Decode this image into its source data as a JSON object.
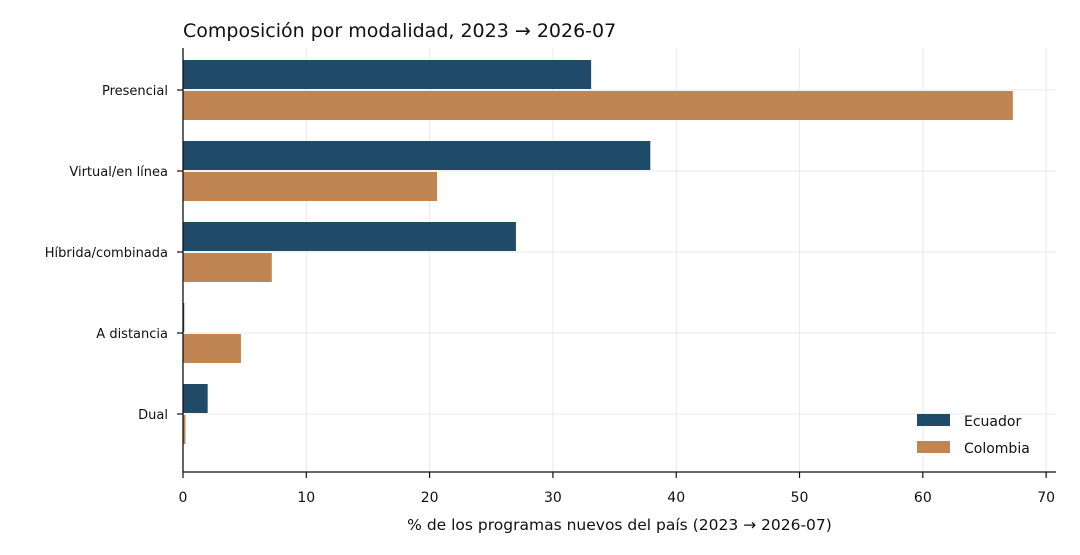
{
  "chart_data": {
    "type": "bar",
    "orientation": "horizontal",
    "title": "Composición por modalidad, 2023 → 2026-07",
    "xlabel": "% de los programas nuevos del país (2023 → 2026-07)",
    "ylabel": "",
    "categories": [
      "Presencial",
      "Virtual/en línea",
      "Híbrida/combinada",
      "A distancia",
      "Dual"
    ],
    "series": [
      {
        "name": "Ecuador",
        "color": "#1f4a68",
        "values": [
          33.1,
          37.9,
          27.0,
          0.1,
          2.0
        ]
      },
      {
        "name": "Colombia",
        "color": "#c08552",
        "values": [
          67.3,
          20.6,
          7.2,
          4.7,
          0.2
        ]
      }
    ],
    "xlim": [
      0,
      70.8
    ],
    "xticks": [
      0,
      10,
      20,
      30,
      40,
      50,
      60,
      70
    ],
    "grid": true,
    "legend_position": "lower-right"
  }
}
